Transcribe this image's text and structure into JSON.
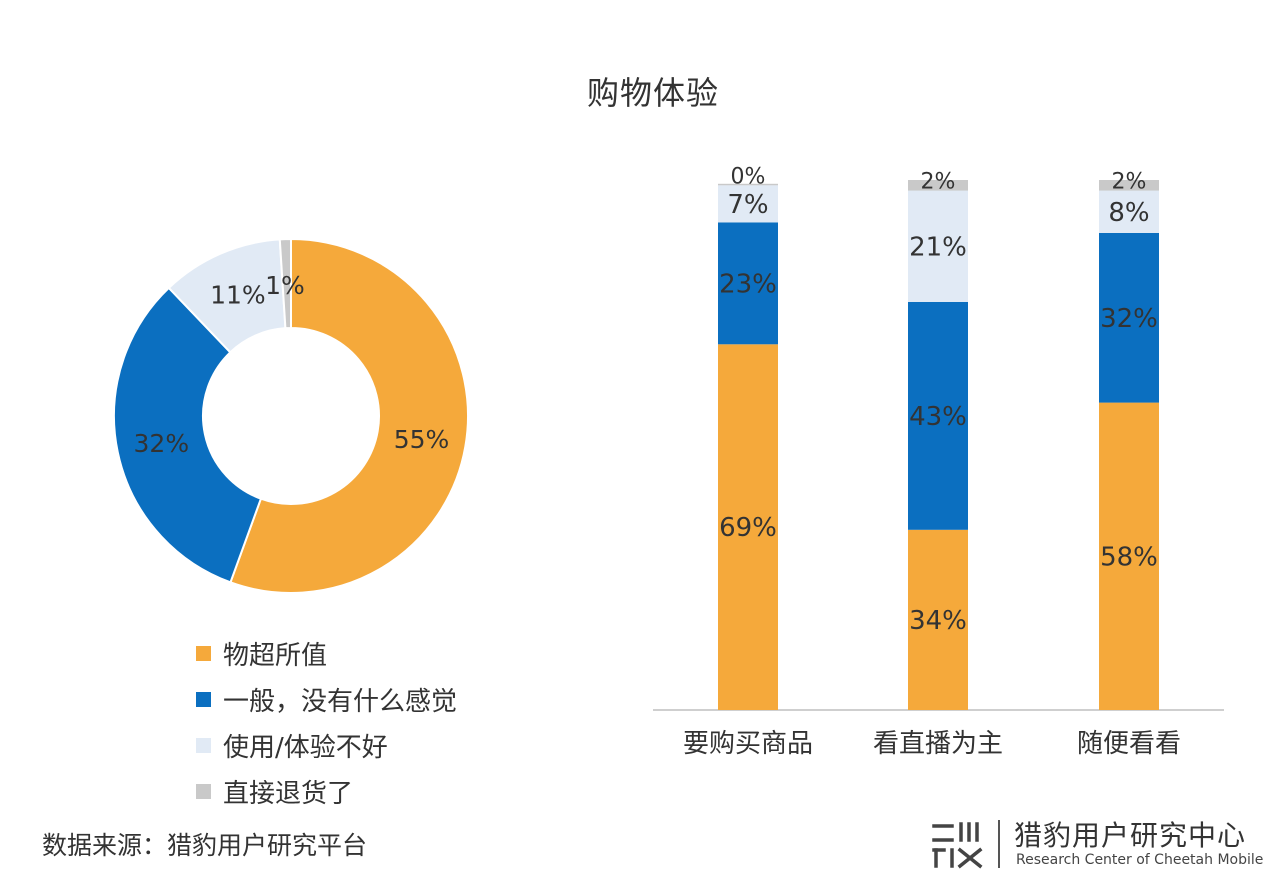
{
  "title": "购物体验",
  "chart_data": [
    {
      "type": "pie",
      "variant": "donut",
      "slices": [
        {
          "name": "物超所值",
          "value": 55,
          "label": "55%",
          "color": "#F5A93B"
        },
        {
          "name": "一般，没有什么感觉",
          "value": 32,
          "label": "32%",
          "color": "#0B6FC0"
        },
        {
          "name": "使用/体验不好",
          "value": 11,
          "label": "11%",
          "color": "#E1EAF5"
        },
        {
          "name": "直接退货了",
          "value": 1,
          "label": "1%",
          "color": "#C9C9C9"
        }
      ],
      "legend_position": "bottom"
    },
    {
      "type": "bar",
      "stacked": true,
      "categories": [
        "要购买商品",
        "看直播为主",
        "随便看看"
      ],
      "series": [
        {
          "name": "物超所值",
          "color": "#F5A93B",
          "values": [
            69,
            34,
            58
          ],
          "labels": [
            "69%",
            "34%",
            "58%"
          ]
        },
        {
          "name": "一般，没有什么感觉",
          "color": "#0B6FC0",
          "values": [
            23,
            43,
            32
          ],
          "labels": [
            "23%",
            "43%",
            "32%"
          ]
        },
        {
          "name": "使用/体验不好",
          "color": "#E1EAF5",
          "values": [
            7,
            21,
            8
          ],
          "labels": [
            "7%",
            "21%",
            "8%"
          ]
        },
        {
          "name": "直接退货了",
          "color": "#C9C9C9",
          "values": [
            0,
            2,
            2
          ],
          "labels": [
            "0%",
            "2%",
            "2%"
          ]
        }
      ],
      "ylim": [
        0,
        100
      ],
      "grid": false
    }
  ],
  "source": "数据来源：猎豹用户研究平台",
  "logo": {
    "name": "猎豹用户研究中心",
    "subtitle": "Research Center of Cheetah Mobile",
    "watermark_text": "猎豹用户研究中心",
    "watermark_sub": "Research Center of Cheetah Mobile"
  }
}
